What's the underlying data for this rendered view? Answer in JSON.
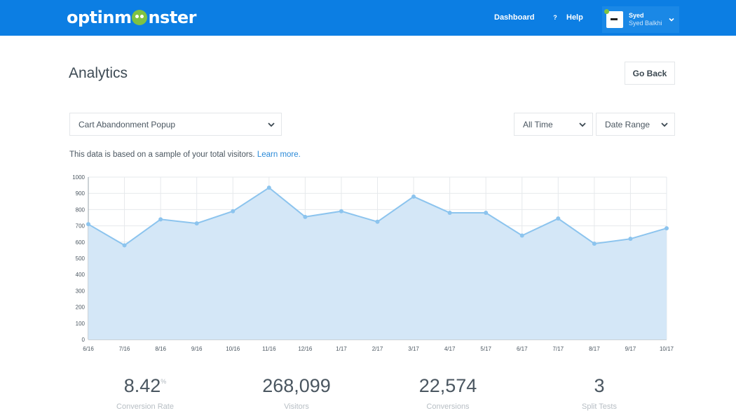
{
  "header": {
    "logo_text_pre": "optinm",
    "logo_text_post": "nster",
    "nav_dashboard": "Dashboard",
    "help_icon": "?",
    "nav_help": "Help",
    "user_first": "Syed",
    "user_full": "Syed Balkhi",
    "brand_color": "#0c7ee3"
  },
  "page": {
    "title": "Analytics",
    "go_back": "Go Back"
  },
  "filters": {
    "campaign": "Cart Abandonment Popup",
    "time": "All Time",
    "range": "Date Range"
  },
  "note": {
    "text": "This data is based on a sample of your total visitors.",
    "link": "Learn more."
  },
  "chart_data": {
    "type": "area",
    "title": "",
    "xlabel": "",
    "ylabel": "",
    "x": [
      "6/16",
      "7/16",
      "8/16",
      "9/16",
      "10/16",
      "11/16",
      "12/16",
      "1/17",
      "2/17",
      "3/17",
      "4/17",
      "5/17",
      "6/17",
      "7/17",
      "8/17",
      "9/17",
      "10/17"
    ],
    "values": [
      710,
      580,
      740,
      715,
      790,
      935,
      755,
      790,
      725,
      880,
      780,
      780,
      640,
      745,
      590,
      620,
      685
    ],
    "ylim": [
      0,
      1000
    ],
    "yticks": [
      0,
      100,
      200,
      300,
      400,
      500,
      600,
      700,
      800,
      900,
      1000
    ],
    "grid": true,
    "line_color": "#8cc4ee",
    "fill_color": "#d4e7f7"
  },
  "stats": [
    {
      "value": "8.42",
      "suffix": "%",
      "label": "Conversion Rate"
    },
    {
      "value": "268,099",
      "suffix": "",
      "label": "Visitors"
    },
    {
      "value": "22,574",
      "suffix": "",
      "label": "Conversions"
    },
    {
      "value": "3",
      "suffix": "",
      "label": "Split Tests"
    }
  ]
}
